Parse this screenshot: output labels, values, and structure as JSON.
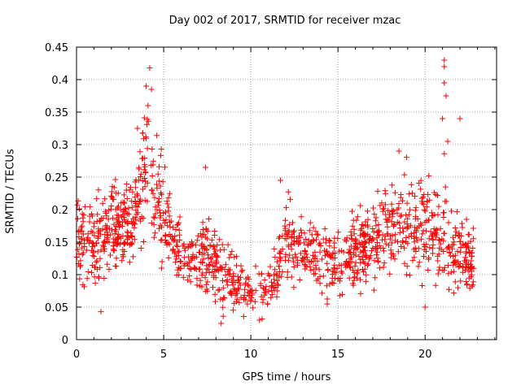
{
  "chart_data": {
    "type": "scatter",
    "title": "Day 002 of 2017, SRMTID for receiver mzac",
    "xlabel": "GPS time / hours",
    "ylabel": "SRMTID / TECUs",
    "xlim": [
      0,
      24.1
    ],
    "ylim": [
      0,
      0.45
    ],
    "xticks": [
      0,
      5,
      10,
      15,
      20
    ],
    "yticks": [
      0,
      0.05,
      0.1,
      0.15,
      0.2,
      0.25,
      0.3,
      0.35,
      0.4,
      0.45
    ],
    "xtick_labels": [
      "0",
      "5",
      "10",
      "15",
      "20"
    ],
    "ytick_labels": [
      "0",
      "0.05",
      "0.1",
      "0.15",
      "0.2",
      "0.25",
      "0.3",
      "0.35",
      "0.4",
      "0.45"
    ],
    "grid": true,
    "marker": "+",
    "color": "#ff0000",
    "trend": {
      "x": [
        0,
        1,
        2,
        3,
        3.8,
        4.3,
        5,
        5.5,
        6.5,
        7.5,
        8.5,
        9.5,
        10.5,
        11.2,
        12,
        13,
        14,
        15,
        16,
        17,
        18,
        19,
        20,
        21,
        22,
        22.8
      ],
      "y": [
        0.16,
        0.14,
        0.17,
        0.18,
        0.24,
        0.26,
        0.2,
        0.15,
        0.12,
        0.13,
        0.1,
        0.08,
        0.07,
        0.09,
        0.15,
        0.14,
        0.12,
        0.12,
        0.13,
        0.15,
        0.17,
        0.18,
        0.18,
        0.16,
        0.13,
        0.12
      ],
      "spread": [
        0.05,
        0.05,
        0.05,
        0.05,
        0.07,
        0.08,
        0.06,
        0.04,
        0.04,
        0.05,
        0.04,
        0.03,
        0.03,
        0.03,
        0.05,
        0.04,
        0.04,
        0.04,
        0.04,
        0.05,
        0.05,
        0.06,
        0.06,
        0.06,
        0.05,
        0.04
      ]
    },
    "notable_points": [
      {
        "x": 4.2,
        "y": 0.418
      },
      {
        "x": 4.0,
        "y": 0.39
      },
      {
        "x": 4.3,
        "y": 0.385
      },
      {
        "x": 4.1,
        "y": 0.36
      },
      {
        "x": 3.5,
        "y": 0.325
      },
      {
        "x": 21.1,
        "y": 0.43
      },
      {
        "x": 21.1,
        "y": 0.42
      },
      {
        "x": 21.1,
        "y": 0.395
      },
      {
        "x": 21.2,
        "y": 0.375
      },
      {
        "x": 21.0,
        "y": 0.34
      },
      {
        "x": 21.3,
        "y": 0.305
      },
      {
        "x": 21.1,
        "y": 0.286
      },
      {
        "x": 22.0,
        "y": 0.34
      },
      {
        "x": 7.4,
        "y": 0.265
      },
      {
        "x": 18.5,
        "y": 0.29
      },
      {
        "x": 11.7,
        "y": 0.245
      },
      {
        "x": 20.0,
        "y": 0.05
      },
      {
        "x": 1.4,
        "y": 0.043
      },
      {
        "x": 8.3,
        "y": 0.025
      },
      {
        "x": 10.5,
        "y": 0.03
      }
    ],
    "point_count": 1400
  }
}
